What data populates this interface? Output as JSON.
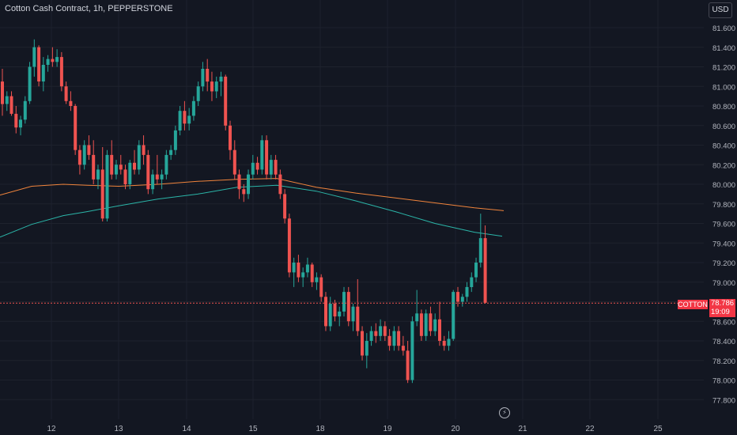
{
  "header": {
    "title": "Cotton Cash Contract, 1h, PEPPERSTONE",
    "currency": "USD"
  },
  "price_tag": {
    "symbol": "COTTON",
    "price": "78.786",
    "countdown": "19:09"
  },
  "colors": {
    "up": "#26a69a",
    "down": "#ef5350",
    "ma_slow": "#f0843c",
    "ma_fast": "#2bb5a8",
    "grid": "#1e222d",
    "text": "#b2b5be"
  },
  "icons": {
    "bottom": "lightning-icon"
  },
  "chart_data": {
    "type": "candlestick",
    "title": "Cotton Cash Contract, 1h, PEPPERSTONE",
    "y_ticks": [
      "81.600",
      "81.400",
      "81.200",
      "81.000",
      "80.800",
      "80.600",
      "80.400",
      "80.200",
      "80.000",
      "79.800",
      "79.600",
      "79.400",
      "79.200",
      "79.000",
      "78.800",
      "78.600",
      "78.400",
      "78.200",
      "78.000",
      "77.800"
    ],
    "ylim": [
      77.72,
      81.82
    ],
    "x_ticks": [
      "12",
      "13",
      "14",
      "15",
      "18",
      "19",
      "20",
      "21",
      "22",
      "25"
    ],
    "current_price": 78.786,
    "ohlc": [
      [
        81.05,
        81.18,
        80.7,
        80.82
      ],
      [
        80.82,
        80.95,
        80.75,
        80.9
      ],
      [
        80.9,
        80.95,
        80.7,
        80.72
      ],
      [
        80.72,
        80.8,
        80.52,
        80.58
      ],
      [
        80.58,
        80.7,
        80.5,
        80.66
      ],
      [
        80.66,
        80.9,
        80.62,
        80.85
      ],
      [
        80.85,
        81.25,
        80.82,
        81.2
      ],
      [
        81.2,
        81.48,
        81.1,
        81.4
      ],
      [
        81.4,
        81.42,
        81.0,
        81.05
      ],
      [
        81.05,
        81.3,
        80.95,
        81.22
      ],
      [
        81.22,
        81.32,
        81.15,
        81.28
      ],
      [
        81.28,
        81.4,
        81.2,
        81.25
      ],
      [
        81.25,
        81.38,
        81.2,
        81.3
      ],
      [
        81.3,
        81.35,
        80.95,
        81.0
      ],
      [
        81.0,
        81.05,
        80.82,
        80.85
      ],
      [
        80.85,
        80.95,
        80.75,
        80.8
      ],
      [
        80.8,
        80.82,
        80.3,
        80.35
      ],
      [
        80.35,
        80.4,
        80.1,
        80.2
      ],
      [
        80.2,
        80.45,
        80.15,
        80.4
      ],
      [
        80.4,
        80.5,
        80.25,
        80.3
      ],
      [
        80.3,
        80.45,
        80.0,
        80.05
      ],
      [
        80.05,
        80.2,
        79.95,
        80.15
      ],
      [
        80.15,
        80.38,
        79.62,
        79.65
      ],
      [
        79.65,
        80.35,
        79.62,
        80.3
      ],
      [
        80.3,
        80.45,
        80.05,
        80.1
      ],
      [
        80.1,
        80.25,
        80.05,
        80.2
      ],
      [
        80.2,
        80.3,
        80.1,
        80.15
      ],
      [
        80.15,
        80.2,
        79.95,
        80.0
      ],
      [
        80.0,
        80.25,
        79.95,
        80.22
      ],
      [
        80.22,
        80.35,
        80.1,
        80.15
      ],
      [
        80.15,
        80.45,
        80.1,
        80.4
      ],
      [
        80.4,
        80.5,
        80.2,
        80.3
      ],
      [
        80.3,
        80.35,
        79.9,
        79.95
      ],
      [
        79.95,
        80.15,
        79.9,
        80.1
      ],
      [
        80.1,
        80.3,
        80.0,
        80.05
      ],
      [
        80.05,
        80.15,
        79.95,
        80.1
      ],
      [
        80.1,
        80.35,
        80.05,
        80.3
      ],
      [
        80.3,
        80.4,
        80.25,
        80.35
      ],
      [
        80.35,
        80.6,
        80.3,
        80.55
      ],
      [
        80.55,
        80.8,
        80.5,
        80.75
      ],
      [
        80.75,
        80.85,
        80.55,
        80.62
      ],
      [
        80.62,
        80.78,
        80.55,
        80.7
      ],
      [
        80.7,
        80.9,
        80.65,
        80.85
      ],
      [
        80.85,
        81.05,
        80.8,
        81.0
      ],
      [
        81.0,
        81.25,
        80.95,
        81.18
      ],
      [
        81.18,
        81.28,
        80.95,
        81.05
      ],
      [
        81.05,
        81.15,
        80.85,
        80.95
      ],
      [
        80.95,
        81.1,
        80.88,
        81.05
      ],
      [
        81.05,
        81.15,
        80.9,
        81.1
      ],
      [
        81.1,
        81.12,
        80.55,
        80.6
      ],
      [
        80.6,
        80.65,
        80.25,
        80.35
      ],
      [
        80.35,
        80.45,
        80.05,
        80.1
      ],
      [
        80.1,
        80.15,
        79.85,
        79.95
      ],
      [
        79.95,
        80.0,
        79.82,
        79.9
      ],
      [
        79.9,
        80.15,
        79.85,
        80.1
      ],
      [
        80.1,
        80.3,
        80.05,
        80.22
      ],
      [
        80.22,
        80.28,
        80.1,
        80.15
      ],
      [
        80.15,
        80.5,
        80.1,
        80.45
      ],
      [
        80.45,
        80.5,
        80.05,
        80.1
      ],
      [
        80.1,
        80.3,
        80.05,
        80.25
      ],
      [
        80.25,
        80.3,
        80.05,
        80.1
      ],
      [
        80.1,
        80.15,
        79.85,
        79.9
      ],
      [
        79.9,
        79.95,
        79.6,
        79.65
      ],
      [
        79.65,
        79.7,
        79.05,
        79.1
      ],
      [
        79.1,
        79.25,
        78.95,
        79.2
      ],
      [
        79.2,
        79.28,
        79.0,
        79.05
      ],
      [
        79.05,
        79.15,
        78.95,
        79.1
      ],
      [
        79.1,
        79.25,
        79.05,
        79.18
      ],
      [
        79.18,
        79.2,
        78.95,
        79.0
      ],
      [
        79.0,
        79.1,
        78.92,
        79.05
      ],
      [
        79.05,
        79.08,
        78.8,
        78.85
      ],
      [
        78.85,
        78.9,
        78.5,
        78.55
      ],
      [
        78.55,
        78.85,
        78.5,
        78.78
      ],
      [
        78.78,
        78.82,
        78.6,
        78.65
      ],
      [
        78.65,
        78.75,
        78.55,
        78.7
      ],
      [
        78.7,
        78.95,
        78.65,
        78.9
      ],
      [
        78.9,
        78.95,
        78.55,
        78.6
      ],
      [
        78.6,
        78.78,
        78.5,
        78.75
      ],
      [
        78.75,
        79.03,
        78.45,
        78.5
      ],
      [
        78.5,
        78.55,
        78.2,
        78.25
      ],
      [
        78.25,
        78.48,
        78.12,
        78.4
      ],
      [
        78.4,
        78.55,
        78.35,
        78.5
      ],
      [
        78.5,
        78.58,
        78.38,
        78.45
      ],
      [
        78.45,
        78.62,
        78.4,
        78.55
      ],
      [
        78.55,
        78.6,
        78.4,
        78.45
      ],
      [
        78.45,
        78.52,
        78.3,
        78.35
      ],
      [
        78.35,
        78.55,
        78.3,
        78.5
      ],
      [
        78.5,
        78.55,
        78.3,
        78.35
      ],
      [
        78.35,
        78.45,
        78.25,
        78.3
      ],
      [
        78.3,
        78.4,
        77.97,
        78.0
      ],
      [
        78.0,
        78.65,
        77.97,
        78.6
      ],
      [
        78.6,
        78.92,
        78.55,
        78.68
      ],
      [
        78.68,
        78.72,
        78.4,
        78.45
      ],
      [
        78.45,
        78.72,
        78.4,
        78.68
      ],
      [
        78.68,
        78.75,
        78.45,
        78.5
      ],
      [
        78.5,
        78.68,
        78.45,
        78.62
      ],
      [
        78.62,
        78.8,
        78.35,
        78.4
      ],
      [
        78.4,
        78.45,
        78.3,
        78.35
      ],
      [
        78.35,
        78.5,
        78.3,
        78.42
      ],
      [
        78.42,
        78.92,
        78.4,
        78.9
      ],
      [
        78.9,
        78.95,
        78.75,
        78.8
      ],
      [
        78.8,
        78.88,
        78.75,
        78.85
      ],
      [
        78.85,
        79.0,
        78.8,
        78.95
      ],
      [
        78.95,
        79.1,
        78.9,
        79.05
      ],
      [
        79.05,
        79.25,
        79.0,
        79.2
      ],
      [
        79.2,
        79.7,
        79.15,
        79.45
      ],
      [
        79.45,
        79.58,
        78.78,
        78.79
      ]
    ],
    "ma_slow": [
      [
        0,
        79.89
      ],
      [
        40,
        79.98
      ],
      [
        80,
        80.0
      ],
      [
        110,
        79.99
      ],
      [
        150,
        79.98
      ],
      [
        200,
        80.0
      ],
      [
        250,
        80.03
      ],
      [
        300,
        80.05
      ],
      [
        350,
        80.06
      ],
      [
        400,
        79.97
      ],
      [
        450,
        79.91
      ],
      [
        500,
        79.86
      ],
      [
        550,
        79.81
      ],
      [
        600,
        79.76
      ],
      [
        637,
        79.73
      ]
    ],
    "ma_fast": [
      [
        0,
        79.46
      ],
      [
        40,
        79.59
      ],
      [
        80,
        79.68
      ],
      [
        110,
        79.72
      ],
      [
        150,
        79.78
      ],
      [
        200,
        79.85
      ],
      [
        250,
        79.9
      ],
      [
        300,
        79.97
      ],
      [
        350,
        79.99
      ],
      [
        400,
        79.93
      ],
      [
        450,
        79.83
      ],
      [
        500,
        79.72
      ],
      [
        550,
        79.6
      ],
      [
        600,
        79.51
      ],
      [
        635,
        79.47
      ]
    ]
  }
}
